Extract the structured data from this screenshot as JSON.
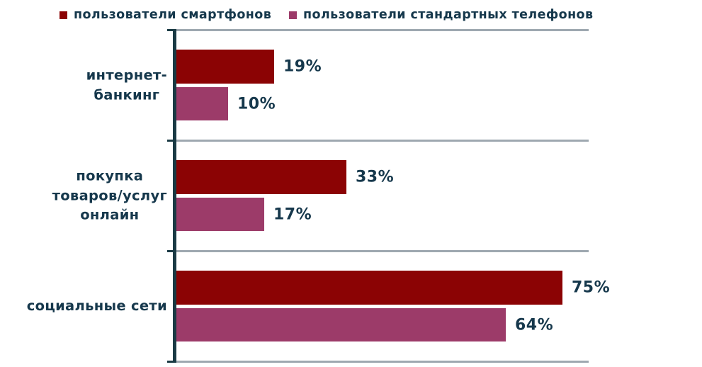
{
  "chart_data": {
    "type": "bar",
    "orientation": "horizontal",
    "title": "",
    "legend_position": "top",
    "grid": "category-separator-lines",
    "xlim": [
      0,
      80
    ],
    "value_suffix": "%",
    "categories": [
      "интернет-банкинг",
      "покупка товаров/услуг онлайн",
      "социальные сети"
    ],
    "categories_display": [
      [
        "интернет-",
        "банкинг"
      ],
      [
        "покупка",
        "товаров/услуг",
        "онлайн"
      ],
      [
        "социальные сети"
      ]
    ],
    "series": [
      {
        "name": "пользователи смартфонов",
        "color": "#8B0304",
        "values": [
          19,
          33,
          75
        ],
        "labels": [
          "19%",
          "33%",
          "75%"
        ]
      },
      {
        "name": "пользователи стандартных телефонов",
        "color": "#9C3B69",
        "values": [
          10,
          17,
          64
        ],
        "labels": [
          "10%",
          "17%",
          "64%"
        ]
      }
    ]
  },
  "colors": {
    "series1": "#8B0304",
    "series2": "#9C3B69",
    "text": "#16384C",
    "axis": "#1A3A44",
    "gridline": "#9EA8B0",
    "background": "#FFFFFF"
  }
}
